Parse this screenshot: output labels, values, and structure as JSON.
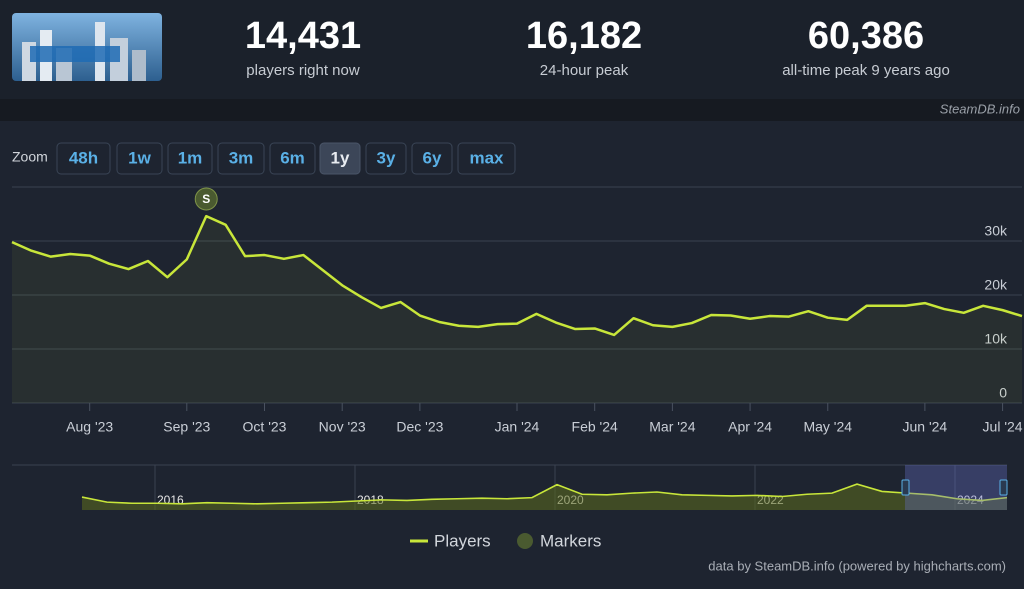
{
  "header": {
    "stats": [
      {
        "value": "14,431",
        "label": "players right now"
      },
      {
        "value": "16,182",
        "label": "24-hour peak"
      },
      {
        "value": "60,386",
        "label": "all-time peak 9 years ago"
      }
    ],
    "source": "SteamDB.info"
  },
  "zoom": {
    "label": "Zoom",
    "options": [
      "48h",
      "1w",
      "1m",
      "3m",
      "6m",
      "1y",
      "3y",
      "6y",
      "max"
    ],
    "active": 5
  },
  "chart_data": {
    "type": "line",
    "categories": [
      null,
      null,
      null,
      null,
      "Aug '23",
      null,
      null,
      null,
      null,
      "Sep '23",
      null,
      null,
      null,
      "Oct '23",
      null,
      null,
      null,
      "Nov '23",
      null,
      null,
      null,
      "Dec '23",
      null,
      null,
      null,
      null,
      "Jan '24",
      null,
      null,
      null,
      "Feb '24",
      null,
      null,
      null,
      "Mar '24",
      null,
      null,
      null,
      "Apr '24",
      null,
      null,
      null,
      "May '24",
      null,
      null,
      null,
      null,
      "Jun '24",
      null,
      null,
      null,
      "Jul '24",
      null
    ],
    "series": [
      {
        "name": "Players",
        "color": "#c8e63a",
        "values": [
          29800,
          28200,
          27100,
          27600,
          27300,
          25800,
          24800,
          26300,
          23300,
          26600,
          34600,
          33000,
          27200,
          27400,
          26700,
          27400,
          24600,
          21800,
          19600,
          17600,
          18700,
          16200,
          15000,
          14300,
          14100,
          14600,
          14700,
          16500,
          14900,
          13700,
          13800,
          12600,
          15700,
          14400,
          14100,
          14800,
          16300,
          16200,
          15600,
          16100,
          16000,
          17000,
          15800,
          15400,
          18000,
          18000,
          18000,
          18500,
          17400,
          16700,
          18000,
          17200,
          16100
        ]
      }
    ],
    "markers": {
      "name": "Markers",
      "color": "#4a5a30",
      "points": [
        {
          "text": "S",
          "point": 10
        }
      ]
    },
    "ylim": [
      0,
      40000
    ],
    "yticks": [
      0,
      {
        "value": 10000,
        "label": "10k"
      },
      {
        "value": 20000,
        "label": "20k"
      },
      {
        "value": 30000,
        "label": "30k"
      }
    ],
    "grid": true
  },
  "navigator": {
    "categories": [
      null,
      null,
      null,
      "2016",
      null,
      null,
      null,
      null,
      null,
      null,
      null,
      "2018",
      null,
      null,
      null,
      null,
      null,
      null,
      null,
      "2020",
      null,
      null,
      null,
      null,
      null,
      null,
      null,
      "2022",
      null,
      null,
      null,
      null,
      null,
      null,
      null,
      "2024",
      null,
      null
    ],
    "values": [
      23000,
      14000,
      12000,
      12000,
      11000,
      13000,
      12000,
      11000,
      12000,
      13000,
      14000,
      16000,
      18000,
      17000,
      19000,
      20000,
      21000,
      20000,
      22000,
      45000,
      28000,
      27000,
      30000,
      32000,
      27000,
      26000,
      25000,
      26000,
      24000,
      28000,
      30000,
      46000,
      33000,
      30000,
      27000,
      20000,
      17000,
      22000
    ],
    "ylim": [
      0,
      80000
    ]
  },
  "credits": "data by SteamDB.info (powered by highcharts.com)"
}
